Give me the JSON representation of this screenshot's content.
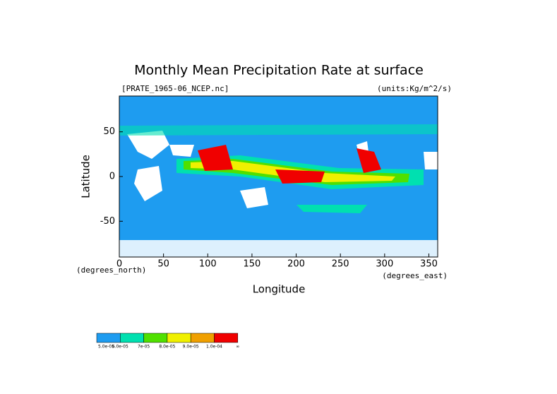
{
  "chart_data": {
    "type": "map-field",
    "title": "Monthly Mean Precipitation Rate at surface",
    "subtitle_left": "[PRATE_1965-06_NCEP.nc]",
    "subtitle_right": "(units:Kg/m^2/s)",
    "x_label": "Longitude",
    "y_label": "Latitude",
    "x_unit": "(degrees_east)",
    "y_unit": "(degrees_north)",
    "xlim": [
      0,
      360
    ],
    "ylim": [
      -90,
      90
    ],
    "xticks": [
      0,
      50,
      100,
      150,
      200,
      250,
      300,
      350
    ],
    "yticks": [
      50,
      0,
      -50
    ],
    "background_color": "#1e9cf0",
    "colorbar": {
      "colors": [
        "#1e9cf0",
        "#00e0b0",
        "#50e000",
        "#f0f000",
        "#f0a000",
        "#f00000"
      ],
      "labels": [
        "5.0e-05",
        "6.0e-05",
        "7e-05",
        "8.0e-05",
        "9.0e-05",
        "1.0e-04",
        "∞"
      ]
    }
  }
}
